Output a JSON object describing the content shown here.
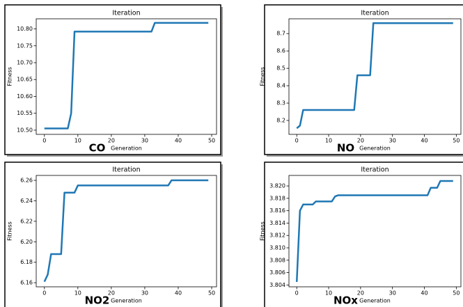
{
  "chart_data": [
    {
      "type": "line",
      "title": "Iteration",
      "xlabel": "Generation",
      "ylabel": "Fitness",
      "annotation": "CO",
      "x": [
        0,
        1,
        2,
        3,
        4,
        5,
        6,
        7,
        8,
        9,
        10,
        11,
        12,
        13,
        14,
        15,
        16,
        17,
        18,
        19,
        20,
        21,
        22,
        23,
        24,
        25,
        26,
        27,
        28,
        29,
        30,
        31,
        32,
        33,
        34,
        35,
        36,
        37,
        38,
        39,
        40,
        41,
        42,
        43,
        44,
        45,
        46,
        47,
        48,
        49
      ],
      "series": [
        {
          "color": "#1f77b4",
          "values": [
            10.505,
            10.505,
            10.505,
            10.505,
            10.505,
            10.505,
            10.505,
            10.505,
            10.55,
            10.792,
            10.792,
            10.792,
            10.792,
            10.792,
            10.792,
            10.792,
            10.792,
            10.792,
            10.792,
            10.792,
            10.792,
            10.792,
            10.792,
            10.792,
            10.792,
            10.792,
            10.792,
            10.792,
            10.792,
            10.792,
            10.792,
            10.792,
            10.792,
            10.818,
            10.818,
            10.818,
            10.818,
            10.818,
            10.818,
            10.818,
            10.818,
            10.818,
            10.818,
            10.818,
            10.818,
            10.818,
            10.818,
            10.818,
            10.818,
            10.818
          ]
        }
      ],
      "xlim": [
        -2.45,
        51.45
      ],
      "xticks": [
        0,
        10,
        20,
        30,
        40,
        50
      ],
      "ylim": [
        10.4875,
        10.83
      ],
      "yticks": [
        {
          "value": 10.5,
          "label": "10.50"
        },
        10.55,
        {
          "value": 10.6,
          "label": "10.60"
        },
        10.65,
        {
          "value": 10.7,
          "label": "10.70"
        },
        10.75,
        {
          "value": 10.8,
          "label": "10.80"
        }
      ]
    },
    {
      "type": "line",
      "title": "Iteration",
      "xlabel": "Generation",
      "ylabel": "Fitness",
      "annotation": "NO",
      "x": [
        0,
        1,
        2,
        3,
        4,
        5,
        6,
        7,
        8,
        9,
        10,
        11,
        12,
        13,
        14,
        15,
        16,
        17,
        18,
        19,
        20,
        21,
        22,
        23,
        24,
        25,
        26,
        27,
        28,
        29,
        30,
        31,
        32,
        33,
        34,
        35,
        36,
        37,
        38,
        39,
        40,
        41,
        42,
        43,
        44,
        45,
        46,
        47,
        48,
        49
      ],
      "series": [
        {
          "color": "#1f77b4",
          "values": [
            8.155,
            8.17,
            8.26,
            8.26,
            8.26,
            8.26,
            8.26,
            8.26,
            8.26,
            8.26,
            8.26,
            8.26,
            8.26,
            8.26,
            8.26,
            8.26,
            8.26,
            8.26,
            8.26,
            8.46,
            8.46,
            8.46,
            8.46,
            8.46,
            8.76,
            8.76,
            8.76,
            8.76,
            8.76,
            8.76,
            8.76,
            8.76,
            8.76,
            8.76,
            8.76,
            8.76,
            8.76,
            8.76,
            8.76,
            8.76,
            8.76,
            8.76,
            8.76,
            8.76,
            8.76,
            8.76,
            8.76,
            8.76,
            8.76,
            8.76
          ]
        }
      ],
      "xlim": [
        -2.45,
        51.45
      ],
      "xticks": [
        0,
        10,
        20,
        30,
        40,
        50
      ],
      "ylim": [
        8.12,
        8.785
      ],
      "yticks": [
        8.2,
        8.3,
        8.4,
        8.5,
        8.6,
        8.7
      ]
    },
    {
      "type": "line",
      "title": "Iteration",
      "xlabel": "Generation",
      "ylabel": "Fitness",
      "annotation": "NO2",
      "x": [
        0,
        1,
        2,
        3,
        4,
        5,
        6,
        7,
        8,
        9,
        10,
        11,
        12,
        13,
        14,
        15,
        16,
        17,
        18,
        19,
        20,
        21,
        22,
        23,
        24,
        25,
        26,
        27,
        28,
        29,
        30,
        31,
        32,
        33,
        34,
        35,
        36,
        37,
        38,
        39,
        40,
        41,
        42,
        43,
        44,
        45,
        46,
        47,
        48,
        49
      ],
      "series": [
        {
          "color": "#1f77b4",
          "values": [
            6.161,
            6.168,
            6.188,
            6.188,
            6.188,
            6.188,
            6.248,
            6.248,
            6.248,
            6.248,
            6.255,
            6.255,
            6.255,
            6.255,
            6.255,
            6.255,
            6.255,
            6.255,
            6.255,
            6.255,
            6.255,
            6.255,
            6.255,
            6.255,
            6.255,
            6.255,
            6.255,
            6.255,
            6.255,
            6.255,
            6.255,
            6.255,
            6.255,
            6.255,
            6.255,
            6.255,
            6.255,
            6.255,
            6.26,
            6.26,
            6.26,
            6.26,
            6.26,
            6.26,
            6.26,
            6.26,
            6.26,
            6.26,
            6.26,
            6.26
          ]
        }
      ],
      "xlim": [
        -2.45,
        51.45
      ],
      "xticks": [
        0,
        10,
        20,
        30,
        40,
        50
      ],
      "ylim": [
        6.156,
        6.2648
      ],
      "yticks": [
        6.16,
        6.18,
        {
          "value": 6.2,
          "label": "6.20"
        },
        6.22,
        6.24,
        6.26
      ]
    },
    {
      "type": "line",
      "title": "Iteration",
      "xlabel": "Generation",
      "ylabel": "Fitness",
      "annotation": "NOx",
      "x": [
        0,
        1,
        2,
        3,
        4,
        5,
        6,
        7,
        8,
        9,
        10,
        11,
        12,
        13,
        14,
        15,
        16,
        17,
        18,
        19,
        20,
        21,
        22,
        23,
        24,
        25,
        26,
        27,
        28,
        29,
        30,
        31,
        32,
        33,
        34,
        35,
        36,
        37,
        38,
        39,
        40,
        41,
        42,
        43,
        44,
        45,
        46,
        47,
        48,
        49
      ],
      "series": [
        {
          "color": "#1f77b4",
          "values": [
            3.8045,
            3.816,
            3.817,
            3.817,
            3.817,
            3.817,
            3.8175,
            3.8175,
            3.8175,
            3.8175,
            3.8175,
            3.8175,
            3.8183,
            3.8185,
            3.8185,
            3.8185,
            3.8185,
            3.8185,
            3.8185,
            3.8185,
            3.8185,
            3.8185,
            3.8185,
            3.8185,
            3.8185,
            3.8185,
            3.8185,
            3.8185,
            3.8185,
            3.8185,
            3.8185,
            3.8185,
            3.8185,
            3.8185,
            3.8185,
            3.8185,
            3.8185,
            3.8185,
            3.8185,
            3.8185,
            3.8185,
            3.8185,
            3.8197,
            3.8197,
            3.8197,
            3.8208,
            3.8208,
            3.8208,
            3.8208,
            3.8208
          ]
        }
      ],
      "xlim": [
        -2.45,
        51.45
      ],
      "xticks": [
        0,
        10,
        20,
        30,
        40,
        50
      ],
      "ylim": [
        3.8037,
        3.8217
      ],
      "yticks": [
        3.804,
        3.806,
        3.808,
        {
          "value": 3.81,
          "label": "3.810"
        },
        3.812,
        3.814,
        3.816,
        3.818,
        {
          "value": 3.82,
          "label": "3.820"
        }
      ]
    }
  ]
}
